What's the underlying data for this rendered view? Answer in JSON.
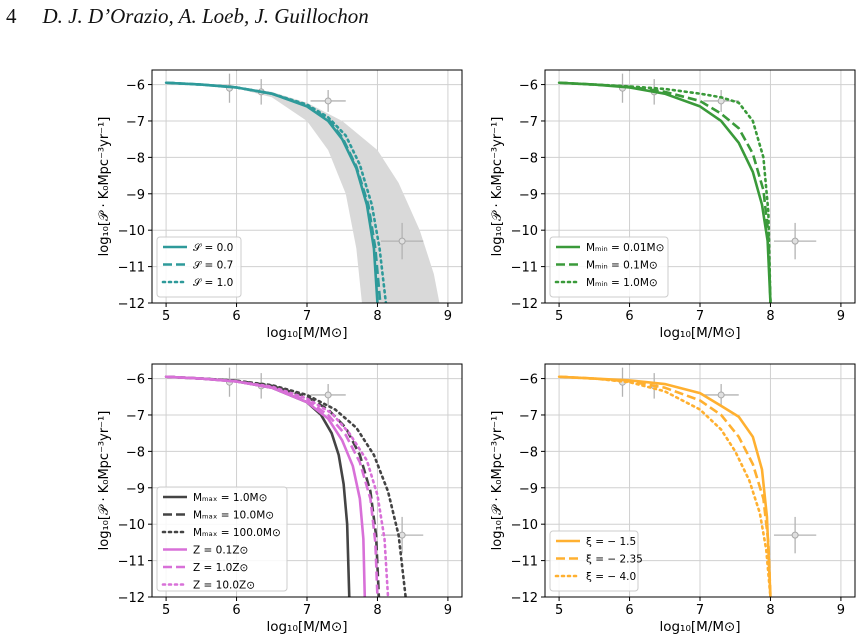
{
  "header": {
    "page_number": "4",
    "authors": "D. J. D’Orazio, A. Loeb, J. Guillochon"
  },
  "chart_data": [
    {
      "type": "line",
      "xlabel": "log₁₀[M/M⊙]",
      "ylabel": "log₁₀[𝒫 · K₀Mpc⁻³yr⁻¹]",
      "xlim": [
        4.8,
        9.2
      ],
      "ylim": [
        -12,
        -5.6
      ],
      "xticks": [
        "5",
        "6",
        "7",
        "8",
        "9"
      ],
      "yticks": [
        "-6",
        "-7",
        "-8",
        "-9",
        "-10",
        "-11",
        "-12"
      ],
      "grid": true,
      "legend": "lower-left",
      "shaded_band": {
        "color": "#d9d9d9",
        "upper": [
          [
            5.0,
            -5.95
          ],
          [
            5.5,
            -6.0
          ],
          [
            6.0,
            -6.05
          ],
          [
            6.5,
            -6.2
          ],
          [
            7.0,
            -6.5
          ],
          [
            7.5,
            -7.0
          ],
          [
            8.0,
            -7.8
          ],
          [
            8.3,
            -8.7
          ],
          [
            8.6,
            -10.0
          ],
          [
            8.8,
            -11.2
          ],
          [
            8.88,
            -12.0
          ]
        ],
        "lower": [
          [
            5.0,
            -5.95
          ],
          [
            5.5,
            -6.0
          ],
          [
            6.0,
            -6.1
          ],
          [
            6.5,
            -6.35
          ],
          [
            7.0,
            -7.0
          ],
          [
            7.3,
            -7.8
          ],
          [
            7.55,
            -9.0
          ],
          [
            7.7,
            -10.5
          ],
          [
            7.78,
            -12.0
          ]
        ]
      },
      "data_points": [
        {
          "x": 5.9,
          "y": -6.1,
          "xerr": 0.0,
          "yerr": 0.4
        },
        {
          "x": 6.35,
          "y": -6.2,
          "xerr": 0.0,
          "yerr": 0.35
        },
        {
          "x": 7.3,
          "y": -6.45,
          "xerr": 0.25,
          "yerr": 0.3
        },
        {
          "x": 8.35,
          "y": -10.3,
          "xerr": 0.3,
          "yerr": 0.5
        }
      ],
      "series": [
        {
          "name": "𝒮 = 0.0",
          "color": "#2e9a9a",
          "style": "solid",
          "x": [
            5.0,
            5.5,
            6.0,
            6.5,
            7.0,
            7.3,
            7.5,
            7.7,
            7.85,
            7.95,
            8.0
          ],
          "y": [
            -5.95,
            -6.0,
            -6.08,
            -6.25,
            -6.6,
            -7.0,
            -7.5,
            -8.3,
            -9.3,
            -10.5,
            -12.0
          ]
        },
        {
          "name": "𝒮 = 0.7",
          "color": "#2e9a9a",
          "style": "dashed",
          "x": [
            5.0,
            5.5,
            6.0,
            6.5,
            7.0,
            7.3,
            7.5,
            7.7,
            7.87,
            7.97,
            8.04
          ],
          "y": [
            -5.95,
            -6.0,
            -6.08,
            -6.25,
            -6.58,
            -6.95,
            -7.45,
            -8.25,
            -9.3,
            -10.5,
            -12.0
          ]
        },
        {
          "name": "𝒮 = 1.0",
          "color": "#2e9a9a",
          "style": "dotted",
          "x": [
            5.0,
            5.5,
            6.0,
            6.5,
            7.0,
            7.3,
            7.55,
            7.75,
            7.92,
            8.03,
            8.12
          ],
          "y": [
            -5.95,
            -6.0,
            -6.08,
            -6.25,
            -6.55,
            -6.9,
            -7.4,
            -8.2,
            -9.3,
            -10.5,
            -12.0
          ]
        }
      ]
    },
    {
      "type": "line",
      "xlabel": "log₁₀[M/M⊙]",
      "ylabel": "log₁₀[𝒫 · K₀Mpc⁻³yr⁻¹]",
      "xlim": [
        4.8,
        9.2
      ],
      "ylim": [
        -12,
        -5.6
      ],
      "xticks": [
        "5",
        "6",
        "7",
        "8",
        "9"
      ],
      "yticks": [
        "-6",
        "-7",
        "-8",
        "-9",
        "-10",
        "-11",
        "-12"
      ],
      "grid": true,
      "legend": "lower-left",
      "data_points": [
        {
          "x": 5.9,
          "y": -6.1,
          "xerr": 0.0,
          "yerr": 0.4
        },
        {
          "x": 6.35,
          "y": -6.2,
          "xerr": 0.0,
          "yerr": 0.35
        },
        {
          "x": 7.3,
          "y": -6.45,
          "xerr": 0.25,
          "yerr": 0.3
        },
        {
          "x": 8.35,
          "y": -10.3,
          "xerr": 0.3,
          "yerr": 0.5
        }
      ],
      "series": [
        {
          "name": "Mₘᵢₙ = 0.01M⊙",
          "color": "#3a9a3a",
          "style": "solid",
          "x": [
            5.0,
            5.5,
            6.0,
            6.5,
            7.0,
            7.3,
            7.55,
            7.75,
            7.88,
            7.96,
            8.0
          ],
          "y": [
            -5.95,
            -6.0,
            -6.08,
            -6.25,
            -6.6,
            -7.0,
            -7.6,
            -8.4,
            -9.3,
            -10.3,
            -12.0
          ]
        },
        {
          "name": "Mₘᵢₙ = 0.1M⊙",
          "color": "#3a9a3a",
          "style": "dashed",
          "x": [
            5.0,
            5.5,
            6.0,
            6.5,
            7.0,
            7.3,
            7.55,
            7.75,
            7.9,
            7.97,
            8.0
          ],
          "y": [
            -5.95,
            -6.0,
            -6.06,
            -6.2,
            -6.45,
            -6.8,
            -7.2,
            -7.9,
            -8.9,
            -10.1,
            -12.0
          ]
        },
        {
          "name": "Mₘᵢₙ = 1.0M⊙",
          "color": "#3a9a3a",
          "style": "dotted",
          "x": [
            5.0,
            5.5,
            6.0,
            6.5,
            7.0,
            7.3,
            7.55,
            7.75,
            7.9,
            7.97,
            8.0
          ],
          "y": [
            -5.95,
            -6.0,
            -6.05,
            -6.12,
            -6.25,
            -6.35,
            -6.5,
            -7.0,
            -8.0,
            -9.5,
            -12.0
          ]
        }
      ]
    },
    {
      "type": "line",
      "xlabel": "log₁₀[M/M⊙]",
      "ylabel": "log₁₀[𝒫 · K₀Mpc⁻³yr⁻¹]",
      "xlim": [
        4.8,
        9.2
      ],
      "ylim": [
        -12,
        -5.6
      ],
      "xticks": [
        "5",
        "6",
        "7",
        "8",
        "9"
      ],
      "yticks": [
        "-6",
        "-7",
        "-8",
        "-9",
        "-10",
        "-11",
        "-12"
      ],
      "grid": true,
      "legend": "lower-left",
      "data_points": [
        {
          "x": 5.9,
          "y": -6.1,
          "xerr": 0.0,
          "yerr": 0.4
        },
        {
          "x": 6.35,
          "y": -6.2,
          "xerr": 0.0,
          "yerr": 0.35
        },
        {
          "x": 7.3,
          "y": -6.45,
          "xerr": 0.25,
          "yerr": 0.3
        },
        {
          "x": 8.35,
          "y": -10.3,
          "xerr": 0.3,
          "yerr": 0.5
        }
      ],
      "series": [
        {
          "name": "Mₘₐₓ = 1.0M⊙",
          "color": "#444444",
          "style": "solid",
          "x": [
            5.0,
            5.5,
            6.0,
            6.5,
            7.0,
            7.2,
            7.35,
            7.45,
            7.52,
            7.57,
            7.6
          ],
          "y": [
            -5.95,
            -6.0,
            -6.08,
            -6.25,
            -6.65,
            -7.0,
            -7.5,
            -8.1,
            -8.9,
            -10.0,
            -12.0
          ]
        },
        {
          "name": "Mₘₐₓ = 10.0M⊙",
          "color": "#444444",
          "style": "dashed",
          "x": [
            5.0,
            5.5,
            6.0,
            6.5,
            7.0,
            7.3,
            7.55,
            7.75,
            7.9,
            7.98,
            8.02
          ],
          "y": [
            -5.95,
            -6.0,
            -6.06,
            -6.2,
            -6.5,
            -6.85,
            -7.35,
            -8.1,
            -9.1,
            -10.3,
            -12.0
          ]
        },
        {
          "name": "Mₘₐₓ = 100.0M⊙",
          "color": "#444444",
          "style": "dotted",
          "x": [
            5.0,
            5.5,
            6.0,
            6.5,
            7.0,
            7.4,
            7.7,
            7.95,
            8.15,
            8.3,
            8.4
          ],
          "y": [
            -5.95,
            -6.0,
            -6.06,
            -6.18,
            -6.45,
            -6.85,
            -7.35,
            -8.1,
            -9.1,
            -10.3,
            -12.0
          ]
        },
        {
          "name": "Z = 0.1Z⊙",
          "color": "#d870d8",
          "style": "solid",
          "x": [
            5.0,
            5.5,
            6.0,
            6.5,
            7.0,
            7.3,
            7.5,
            7.65,
            7.75,
            7.8,
            7.82
          ],
          "y": [
            -5.95,
            -6.0,
            -6.08,
            -6.25,
            -6.65,
            -7.1,
            -7.7,
            -8.4,
            -9.3,
            -10.4,
            -12.0
          ]
        },
        {
          "name": "Z = 1.0Z⊙",
          "color": "#d870d8",
          "style": "dashed",
          "x": [
            5.0,
            5.5,
            6.0,
            6.5,
            7.0,
            7.3,
            7.55,
            7.75,
            7.9,
            7.97,
            8.0
          ],
          "y": [
            -5.95,
            -6.0,
            -6.08,
            -6.25,
            -6.6,
            -7.0,
            -7.55,
            -8.3,
            -9.3,
            -10.5,
            -12.0
          ]
        },
        {
          "name": "Z = 10.0Z⊙",
          "color": "#d870d8",
          "style": "dotted",
          "x": [
            5.0,
            5.5,
            6.0,
            6.5,
            7.0,
            7.35,
            7.6,
            7.85,
            8.0,
            8.1,
            8.15
          ],
          "y": [
            -5.95,
            -6.0,
            -6.08,
            -6.22,
            -6.55,
            -6.95,
            -7.5,
            -8.25,
            -9.2,
            -10.4,
            -12.0
          ]
        }
      ]
    },
    {
      "type": "line",
      "xlabel": "log₁₀[M/M⊙]",
      "ylabel": "log₁₀[𝒫 · K₀Mpc⁻³yr⁻¹]",
      "xlim": [
        4.8,
        9.2
      ],
      "ylim": [
        -12,
        -5.6
      ],
      "xticks": [
        "5",
        "6",
        "7",
        "8",
        "9"
      ],
      "yticks": [
        "-6",
        "-7",
        "-8",
        "-9",
        "-10",
        "-11",
        "-12"
      ],
      "grid": true,
      "legend": "lower-left",
      "data_points": [
        {
          "x": 5.9,
          "y": -6.1,
          "xerr": 0.0,
          "yerr": 0.4
        },
        {
          "x": 6.35,
          "y": -6.2,
          "xerr": 0.0,
          "yerr": 0.35
        },
        {
          "x": 7.3,
          "y": -6.45,
          "xerr": 0.25,
          "yerr": 0.3
        },
        {
          "x": 8.35,
          "y": -10.3,
          "xerr": 0.3,
          "yerr": 0.5
        }
      ],
      "series": [
        {
          "name": "ξ = − 1.5",
          "color": "#ffb030",
          "style": "solid",
          "x": [
            5.0,
            5.5,
            6.0,
            6.5,
            7.0,
            7.3,
            7.55,
            7.75,
            7.88,
            7.95,
            8.0
          ],
          "y": [
            -5.95,
            -6.0,
            -6.05,
            -6.15,
            -6.4,
            -6.75,
            -7.05,
            -7.6,
            -8.5,
            -9.8,
            -12.0
          ]
        },
        {
          "name": "ξ = − 2.35",
          "color": "#ffb030",
          "style": "dashed",
          "x": [
            5.0,
            5.5,
            6.0,
            6.5,
            7.0,
            7.3,
            7.55,
            7.75,
            7.9,
            7.97,
            8.0
          ],
          "y": [
            -5.95,
            -6.0,
            -6.08,
            -6.25,
            -6.6,
            -7.0,
            -7.6,
            -8.35,
            -9.3,
            -10.5,
            -12.0
          ]
        },
        {
          "name": "ξ = − 4.0",
          "color": "#ffb030",
          "style": "dotted",
          "x": [
            5.0,
            5.5,
            6.0,
            6.5,
            7.0,
            7.3,
            7.5,
            7.7,
            7.85,
            7.94,
            8.0
          ],
          "y": [
            -5.95,
            -6.0,
            -6.1,
            -6.35,
            -6.85,
            -7.4,
            -8.0,
            -8.8,
            -9.7,
            -10.7,
            -12.0
          ]
        }
      ]
    }
  ]
}
